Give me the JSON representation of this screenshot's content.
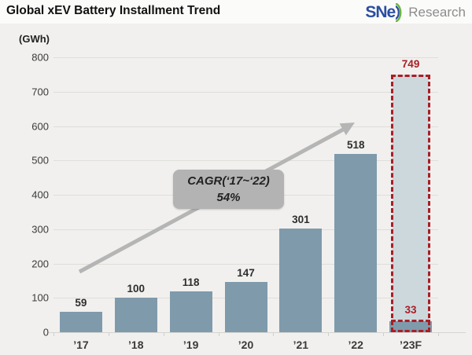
{
  "header": {
    "title": "Global xEV Battery Installment Trend",
    "logo": {
      "sne_text": "SNe",
      "research_text": "Research",
      "blue": "#2b4ea2",
      "green": "#6cb33f",
      "gray": "#8c8c8c"
    }
  },
  "chart_data": {
    "type": "bar",
    "title": "Global xEV Battery Installment Trend",
    "unit_label": "(GWh)",
    "categories": [
      "’17",
      "’18",
      "’19",
      "’20",
      "’21",
      "’22",
      "’23F"
    ],
    "values": [
      59,
      100,
      118,
      147,
      301,
      518,
      749
    ],
    "forecast": {
      "category": "’23F",
      "total": 749,
      "actual": 33
    },
    "ylim": [
      0,
      800
    ],
    "yticks": [
      0,
      100,
      200,
      300,
      400,
      500,
      600,
      700,
      800
    ],
    "grid": "on",
    "legend": "none",
    "annotations": {
      "cagr_line1": "CAGR(‘17~‘22)",
      "cagr_line2": "54%",
      "arrow": "gray trend arrow from ’17 bar to ’22 bar"
    },
    "colors": {
      "bar": "#7f9aab",
      "forecast_fill": "#cdd8dd",
      "forecast_border": "#a91e25",
      "value_label": "#2e2e2e",
      "forecast_value_label": "#a91e25",
      "arrow": "#b5b5b5",
      "cagr_box": "#b3b3b3",
      "background": "#f1f0ee",
      "header_background": "#fbfbfa"
    }
  }
}
